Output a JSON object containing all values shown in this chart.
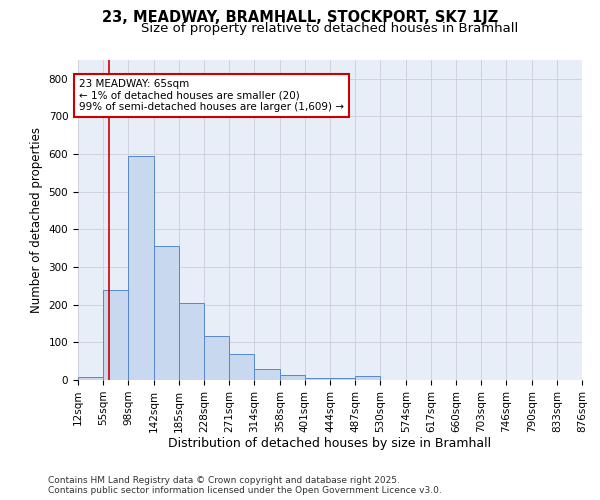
{
  "title1": "23, MEADWAY, BRAMHALL, STOCKPORT, SK7 1JZ",
  "title2": "Size of property relative to detached houses in Bramhall",
  "xlabel": "Distribution of detached houses by size in Bramhall",
  "ylabel": "Number of detached properties",
  "bar_color": "#c8d8ee",
  "bar_edge_color": "#5588cc",
  "background_color": "#e8eef8",
  "grid_color": "#ccccdd",
  "red_line_x": 65,
  "annotation_text": "23 MEADWAY: 65sqm\n← 1% of detached houses are smaller (20)\n99% of semi-detached houses are larger (1,609) →",
  "annotation_box_color": "#ffffff",
  "annotation_box_edge": "#cc0000",
  "bins": [
    12,
    55,
    98,
    142,
    185,
    228,
    271,
    314,
    358,
    401,
    444,
    487,
    530,
    574,
    617,
    660,
    703,
    746,
    790,
    833,
    876
  ],
  "counts": [
    8,
    240,
    595,
    355,
    205,
    118,
    70,
    28,
    13,
    5,
    5,
    10,
    0,
    0,
    0,
    0,
    0,
    0,
    0,
    0
  ],
  "ylim": [
    0,
    850
  ],
  "yticks": [
    0,
    100,
    200,
    300,
    400,
    500,
    600,
    700,
    800
  ],
  "footer": "Contains HM Land Registry data © Crown copyright and database right 2025.\nContains public sector information licensed under the Open Government Licence v3.0.",
  "title1_fontsize": 10.5,
  "title2_fontsize": 9.5,
  "xlabel_fontsize": 9,
  "ylabel_fontsize": 8.5,
  "tick_fontsize": 7.5,
  "footer_fontsize": 6.5
}
